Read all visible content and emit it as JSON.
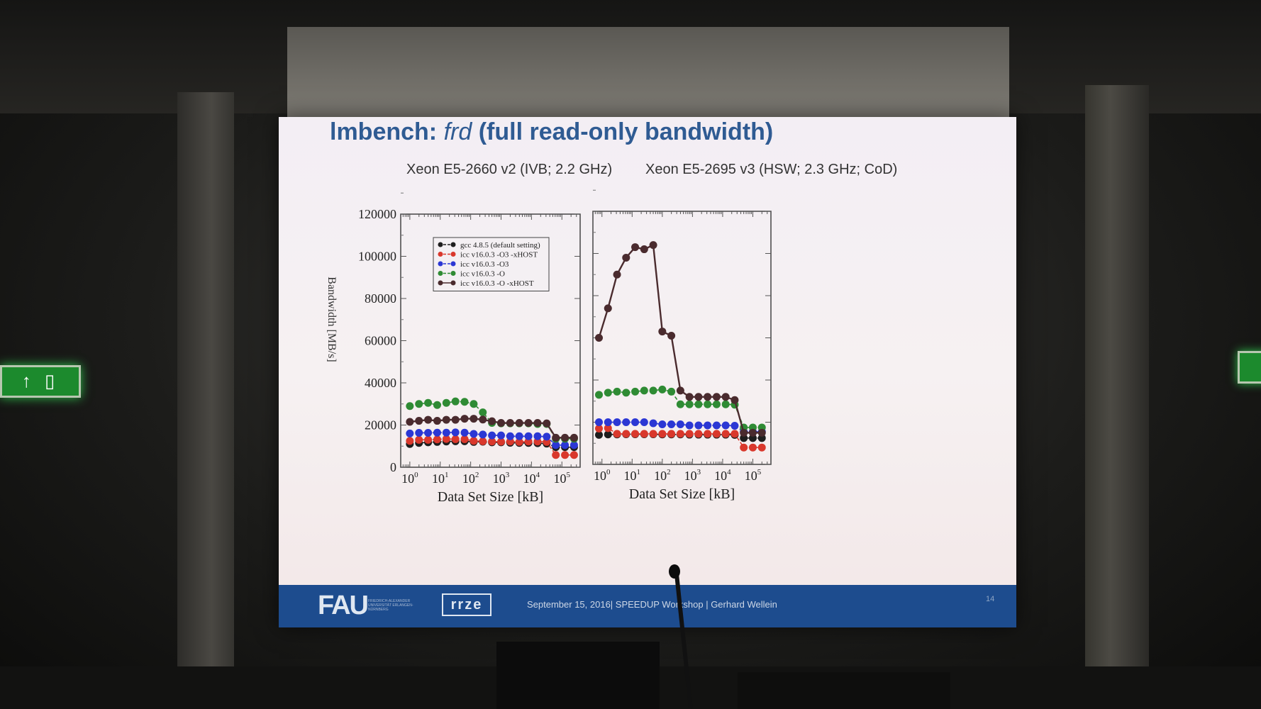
{
  "slide": {
    "title_prefix": "lmbench: ",
    "title_italic": "frd",
    "title_suffix": " (full read-only bandwidth)",
    "subtitle_left": "Xeon E5-2660 v2 (IVB; 2.2 GHz)",
    "subtitle_right": "Xeon E5-2695 v3 (HSW; 2.3 GHz; CoD)"
  },
  "footer": {
    "logo": "FAU",
    "logo_sub": "FRIEDRICH-ALEXANDER UNIVERSITÄT ERLANGEN-NÜRNBERG",
    "logo2": "rrze",
    "text": "September 15, 2016| SPEEDUP Workshop |  Gerhard Wellein",
    "page": "14"
  },
  "exit_sign": "↑ ▯",
  "chart_data": [
    {
      "type": "line",
      "xscale": "log",
      "xlabel": "Data Set Size [kB]",
      "ylabel": "Bandwidth [MB/s]",
      "ylim": [
        0,
        120000
      ],
      "xlim_log10": [
        -0.3,
        5.6
      ],
      "xtick_labels": [
        "10^0",
        "10^1",
        "10^2",
        "10^3",
        "10^4",
        "10^5"
      ],
      "ytick_labels": [
        "0",
        "20000",
        "40000",
        "60000",
        "80000",
        "100000",
        "120000"
      ],
      "legend": "top-center",
      "series": [
        {
          "name": "gcc 4.8.5 (default setting)",
          "color": "#1e1e1e",
          "style": "dashed",
          "log10x": [
            0,
            0.3,
            0.6,
            0.9,
            1.2,
            1.5,
            1.8,
            2.1,
            2.4,
            2.7,
            3.0,
            3.3,
            3.6,
            3.9,
            4.2,
            4.5,
            4.8,
            5.1,
            5.4
          ],
          "y": [
            11000,
            11500,
            11800,
            12000,
            12200,
            12300,
            12300,
            12000,
            12100,
            11800,
            11800,
            11600,
            11500,
            11500,
            11400,
            11200,
            9500,
            9500,
            9500
          ]
        },
        {
          "name": "icc v16.0.3 -O3 -xHOST",
          "color": "#d9382c",
          "style": "dashed",
          "log10x": [
            0,
            0.3,
            0.6,
            0.9,
            1.2,
            1.5,
            1.8,
            2.1,
            2.4,
            2.7,
            3.0,
            3.3,
            3.6,
            3.9,
            4.2,
            4.5,
            4.8,
            5.1,
            5.4
          ],
          "y": [
            12500,
            13000,
            13000,
            13200,
            13400,
            13300,
            13300,
            12500,
            12300,
            12200,
            12100,
            12200,
            12000,
            12200,
            12200,
            12000,
            5800,
            5800,
            5800
          ]
        },
        {
          "name": "icc v16.0.3 -O3",
          "color": "#2b37d4",
          "style": "dashed",
          "log10x": [
            0,
            0.3,
            0.6,
            0.9,
            1.2,
            1.5,
            1.8,
            2.1,
            2.4,
            2.7,
            3.0,
            3.3,
            3.6,
            3.9,
            4.2,
            4.5,
            4.8,
            5.1,
            5.4
          ],
          "y": [
            16000,
            16300,
            16300,
            16400,
            16400,
            16500,
            16400,
            15800,
            15500,
            15100,
            15100,
            14700,
            14700,
            14700,
            14700,
            14500,
            10500,
            10500,
            10500
          ]
        },
        {
          "name": "icc v16.0.3 -O",
          "color": "#2f8b34",
          "style": "dashed",
          "log10x": [
            0,
            0.3,
            0.6,
            0.9,
            1.2,
            1.5,
            1.8,
            2.1,
            2.4,
            2.7,
            3.0,
            3.3,
            3.6,
            3.9,
            4.2,
            4.5,
            4.8,
            5.1,
            5.4
          ],
          "y": [
            29000,
            30000,
            30500,
            29500,
            30500,
            31200,
            31000,
            30000,
            26000,
            21000,
            20800,
            20800,
            20800,
            20800,
            20500,
            20500,
            13500,
            13500,
            13500
          ]
        },
        {
          "name": "icc v16.0.3 -O -xHOST",
          "color": "#4a2b2e",
          "style": "solid",
          "log10x": [
            0,
            0.3,
            0.6,
            0.9,
            1.2,
            1.5,
            1.8,
            2.1,
            2.4,
            2.7,
            3.0,
            3.3,
            3.6,
            3.9,
            4.2,
            4.5,
            4.8,
            5.1,
            5.4
          ],
          "y": [
            21500,
            22000,
            22500,
            22000,
            22500,
            22500,
            23000,
            23000,
            22600,
            21800,
            21000,
            21000,
            21000,
            21000,
            21000,
            20800,
            14000,
            14000,
            14000
          ]
        }
      ]
    },
    {
      "type": "line",
      "xscale": "log",
      "xlabel": "Data Set Size [kB]",
      "ylim": [
        0,
        120000
      ],
      "xlim_log10": [
        -0.3,
        5.6
      ],
      "xtick_labels": [
        "10^0",
        "10^1",
        "10^2",
        "10^3",
        "10^4",
        "10^5"
      ],
      "series": [
        {
          "name": "gcc 4.8.5 (default setting)",
          "color": "#1e1e1e",
          "style": "dashed",
          "log10x": [
            -0.1,
            0.2,
            0.5,
            0.8,
            1.1,
            1.4,
            1.7,
            2.0,
            2.3,
            2.6,
            2.9,
            3.2,
            3.5,
            3.8,
            4.1,
            4.4,
            4.7,
            5.0,
            5.3
          ],
          "y": [
            14000,
            14200,
            14200,
            14300,
            14300,
            14300,
            14300,
            14200,
            14200,
            14200,
            14100,
            14100,
            14100,
            14100,
            14100,
            14000,
            12500,
            12500,
            12500
          ]
        },
        {
          "name": "icc v16.0.3 -O3 -xHOST",
          "color": "#d9382c",
          "style": "dashed",
          "log10x": [
            -0.1,
            0.2,
            0.5,
            0.8,
            1.1,
            1.4,
            1.7,
            2.0,
            2.3,
            2.6,
            2.9,
            3.2,
            3.5,
            3.8,
            4.1,
            4.4,
            4.7,
            5.0,
            5.3
          ],
          "y": [
            17000,
            17200,
            14500,
            14500,
            14500,
            14500,
            14500,
            14500,
            14500,
            14500,
            14500,
            14500,
            14500,
            14500,
            14500,
            14500,
            8000,
            8000,
            8000
          ]
        },
        {
          "name": "icc v16.0.3 -O3",
          "color": "#2b37d4",
          "style": "dashed",
          "log10x": [
            -0.1,
            0.2,
            0.5,
            0.8,
            1.1,
            1.4,
            1.7,
            2.0,
            2.3,
            2.6,
            2.9,
            3.2,
            3.5,
            3.8,
            4.1,
            4.4,
            4.7,
            5.0,
            5.3
          ],
          "y": [
            20000,
            20000,
            20000,
            20000,
            20000,
            20000,
            19500,
            19000,
            19000,
            19000,
            18500,
            18500,
            18500,
            18500,
            18500,
            18300,
            15500,
            15500,
            15500
          ]
        },
        {
          "name": "icc v16.0.3 -O",
          "color": "#2f8b34",
          "style": "dashed",
          "log10x": [
            -0.1,
            0.2,
            0.5,
            0.8,
            1.1,
            1.4,
            1.7,
            2.0,
            2.3,
            2.6,
            2.9,
            3.2,
            3.5,
            3.8,
            4.1,
            4.4,
            4.7,
            5.0,
            5.3
          ],
          "y": [
            33000,
            34000,
            34500,
            34000,
            34500,
            35000,
            35000,
            35500,
            34500,
            28500,
            28500,
            28500,
            28500,
            28500,
            28500,
            28300,
            17500,
            17500,
            17500
          ]
        },
        {
          "name": "icc v16.0.3 -O -xHOST",
          "color": "#4a2b2e",
          "style": "solid",
          "log10x": [
            -0.1,
            0.2,
            0.5,
            0.8,
            1.1,
            1.4,
            1.7,
            2.0,
            2.3,
            2.6,
            2.9,
            3.2,
            3.5,
            3.8,
            4.1,
            4.4,
            4.7,
            5.0,
            5.3
          ],
          "y": [
            60000,
            74000,
            90000,
            98000,
            103000,
            102000,
            104000,
            63000,
            61000,
            35000,
            32000,
            32000,
            32000,
            32000,
            32000,
            30500,
            15000,
            15000,
            15000
          ]
        }
      ]
    }
  ]
}
